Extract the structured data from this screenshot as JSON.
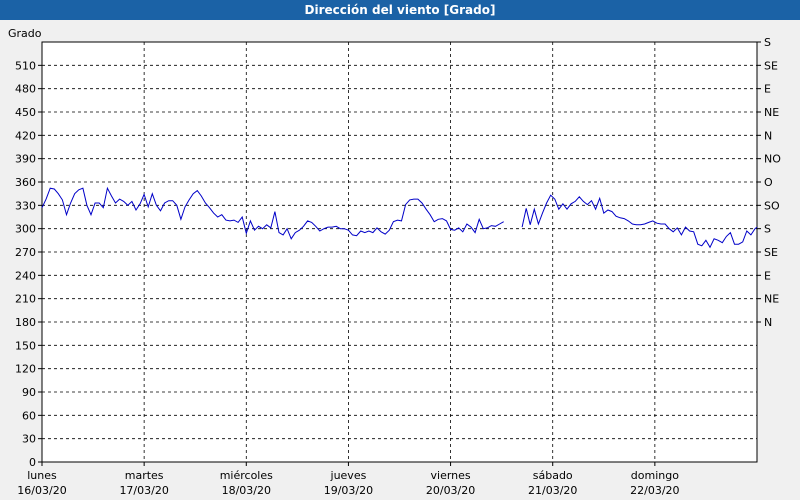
{
  "window": {
    "title": "Dirección del viento [Grado]"
  },
  "chart_data": {
    "type": "line",
    "title": "Dirección del viento [Grado]",
    "ylabel": "Grado",
    "ylim": [
      0,
      540
    ],
    "yticks": [
      0,
      30,
      60,
      90,
      120,
      150,
      180,
      210,
      240,
      270,
      300,
      330,
      360,
      390,
      420,
      450,
      480,
      510
    ],
    "right_axis_labels": [
      {
        "value": 540,
        "label": "S"
      },
      {
        "value": 510,
        "label": "SE"
      },
      {
        "value": 480,
        "label": "E"
      },
      {
        "value": 450,
        "label": "NE"
      },
      {
        "value": 420,
        "label": "N"
      },
      {
        "value": 390,
        "label": "NO"
      },
      {
        "value": 360,
        "label": "O"
      },
      {
        "value": 330,
        "label": "SO"
      },
      {
        "value": 300,
        "label": "S"
      },
      {
        "value": 270,
        "label": "SE"
      },
      {
        "value": 240,
        "label": "E"
      },
      {
        "value": 210,
        "label": "NE"
      },
      {
        "value": 180,
        "label": "N"
      }
    ],
    "xlim": [
      0,
      7
    ],
    "x_unit": "days",
    "x_ticks": [
      {
        "x": 0,
        "day": "lunes",
        "date": "16/03/20"
      },
      {
        "x": 1,
        "day": "martes",
        "date": "17/03/20"
      },
      {
        "x": 2,
        "day": "miércoles",
        "date": "18/03/20"
      },
      {
        "x": 3,
        "day": "jueves",
        "date": "19/03/20"
      },
      {
        "x": 4,
        "day": "viernes",
        "date": "20/03/20"
      },
      {
        "x": 5,
        "day": "sábado",
        "date": "21/03/20"
      },
      {
        "x": 6,
        "day": "domingo",
        "date": "22/03/20"
      }
    ],
    "grid": true,
    "colors": {
      "series": "#0000c8",
      "plot_bg": "#ffffff",
      "page_bg": "#f0f0f0",
      "title_bg": "#1b62a6"
    },
    "series": [
      {
        "segments": [
          [
            [
              0.0,
              327
            ],
            [
              0.04,
              338
            ],
            [
              0.08,
              352
            ],
            [
              0.12,
              351
            ],
            [
              0.16,
              345
            ],
            [
              0.2,
              337
            ],
            [
              0.24,
              318
            ],
            [
              0.28,
              333
            ],
            [
              0.32,
              345
            ],
            [
              0.36,
              350
            ],
            [
              0.4,
              352
            ],
            [
              0.44,
              330
            ],
            [
              0.48,
              318
            ],
            [
              0.52,
              333
            ],
            [
              0.56,
              333
            ],
            [
              0.6,
              327
            ],
            [
              0.64,
              352
            ],
            [
              0.68,
              342
            ],
            [
              0.72,
              333
            ],
            [
              0.76,
              338
            ],
            [
              0.8,
              335
            ],
            [
              0.84,
              330
            ],
            [
              0.88,
              335
            ],
            [
              0.92,
              324
            ],
            [
              0.96,
              332
            ],
            [
              1.0,
              344
            ],
            [
              1.04,
              328
            ],
            [
              1.08,
              345
            ],
            [
              1.12,
              330
            ],
            [
              1.16,
              323
            ],
            [
              1.2,
              333
            ],
            [
              1.24,
              336
            ],
            [
              1.28,
              336
            ],
            [
              1.32,
              330
            ],
            [
              1.36,
              312
            ],
            [
              1.4,
              328
            ],
            [
              1.44,
              337
            ],
            [
              1.48,
              345
            ],
            [
              1.52,
              349
            ],
            [
              1.56,
              342
            ],
            [
              1.6,
              333
            ],
            [
              1.64,
              327
            ],
            [
              1.68,
              320
            ],
            [
              1.72,
              315
            ],
            [
              1.76,
              318
            ],
            [
              1.8,
              311
            ],
            [
              1.84,
              310
            ],
            [
              1.88,
              311
            ],
            [
              1.92,
              308
            ],
            [
              1.96,
              315
            ],
            [
              2.0,
              294
            ],
            [
              2.04,
              310
            ],
            [
              2.08,
              298
            ],
            [
              2.12,
              303
            ],
            [
              2.16,
              300
            ],
            [
              2.2,
              305
            ],
            [
              2.24,
              301
            ],
            [
              2.28,
              322
            ],
            [
              2.32,
              295
            ],
            [
              2.36,
              292
            ],
            [
              2.4,
              300
            ],
            [
              2.44,
              287
            ],
            [
              2.48,
              295
            ],
            [
              2.52,
              298
            ],
            [
              2.56,
              303
            ],
            [
              2.6,
              310
            ],
            [
              2.64,
              308
            ],
            [
              2.68,
              303
            ],
            [
              2.72,
              297
            ],
            [
              2.76,
              300
            ],
            [
              2.8,
              302
            ],
            [
              2.84,
              302
            ],
            [
              2.88,
              303
            ],
            [
              2.92,
              300
            ],
            [
              2.96,
              300
            ],
            [
              3.0,
              298
            ],
            [
              3.04,
              292
            ],
            [
              3.08,
              291
            ],
            [
              3.12,
              297
            ],
            [
              3.16,
              295
            ],
            [
              3.2,
              297
            ],
            [
              3.24,
              295
            ],
            [
              3.28,
              301
            ],
            [
              3.32,
              296
            ],
            [
              3.36,
              293
            ],
            [
              3.4,
              298
            ],
            [
              3.44,
              309
            ],
            [
              3.48,
              311
            ],
            [
              3.52,
              310
            ],
            [
              3.56,
              331
            ],
            [
              3.6,
              337
            ],
            [
              3.64,
              338
            ],
            [
              3.68,
              338
            ],
            [
              3.72,
              333
            ],
            [
              3.76,
              325
            ],
            [
              3.8,
              318
            ],
            [
              3.84,
              309
            ],
            [
              3.88,
              312
            ],
            [
              3.92,
              313
            ],
            [
              3.96,
              310
            ],
            [
              4.0,
              299
            ],
            [
              4.04,
              298
            ],
            [
              4.08,
              301
            ],
            [
              4.12,
              296
            ],
            [
              4.16,
              306
            ],
            [
              4.2,
              302
            ],
            [
              4.24,
              295
            ],
            [
              4.28,
              312
            ],
            [
              4.32,
              300
            ],
            [
              4.36,
              301
            ],
            [
              4.4,
              304
            ],
            [
              4.44,
              303
            ],
            [
              4.48,
              306
            ],
            [
              4.52,
              309
            ]
          ],
          [
            [
              4.7,
              302
            ],
            [
              4.74,
              326
            ],
            [
              4.78,
              305
            ],
            [
              4.82,
              325
            ],
            [
              4.86,
              306
            ],
            [
              4.9,
              320
            ],
            [
              4.94,
              333
            ],
            [
              4.98,
              343
            ],
            [
              5.02,
              338
            ],
            [
              5.06,
              325
            ],
            [
              5.1,
              332
            ],
            [
              5.14,
              325
            ],
            [
              5.18,
              332
            ],
            [
              5.22,
              335
            ],
            [
              5.26,
              341
            ],
            [
              5.3,
              335
            ],
            [
              5.34,
              331
            ],
            [
              5.38,
              336
            ],
            [
              5.42,
              325
            ],
            [
              5.46,
              339
            ],
            [
              5.5,
              320
            ],
            [
              5.54,
              324
            ],
            [
              5.58,
              322
            ],
            [
              5.62,
              316
            ],
            [
              5.66,
              314
            ],
            [
              5.7,
              313
            ],
            [
              5.74,
              310
            ],
            [
              5.78,
              306
            ],
            [
              5.82,
              305
            ],
            [
              5.86,
              305
            ],
            [
              5.9,
              306
            ],
            [
              5.94,
              308
            ],
            [
              5.98,
              310
            ],
            [
              6.02,
              307
            ],
            [
              6.06,
              306
            ],
            [
              6.1,
              306
            ],
            [
              6.14,
              300
            ],
            [
              6.18,
              296
            ],
            [
              6.22,
              301
            ],
            [
              6.26,
              292
            ],
            [
              6.3,
              302
            ],
            [
              6.34,
              297
            ],
            [
              6.38,
              296
            ],
            [
              6.42,
              280
            ],
            [
              6.46,
              278
            ],
            [
              6.5,
              285
            ],
            [
              6.54,
              276
            ],
            [
              6.58,
              287
            ],
            [
              6.62,
              285
            ],
            [
              6.66,
              282
            ],
            [
              6.7,
              290
            ],
            [
              6.74,
              295
            ],
            [
              6.78,
              280
            ],
            [
              6.82,
              280
            ],
            [
              6.86,
              283
            ],
            [
              6.9,
              297
            ],
            [
              6.94,
              292
            ],
            [
              6.98,
              300
            ],
            [
              7.0,
              302
            ]
          ]
        ]
      }
    ]
  }
}
